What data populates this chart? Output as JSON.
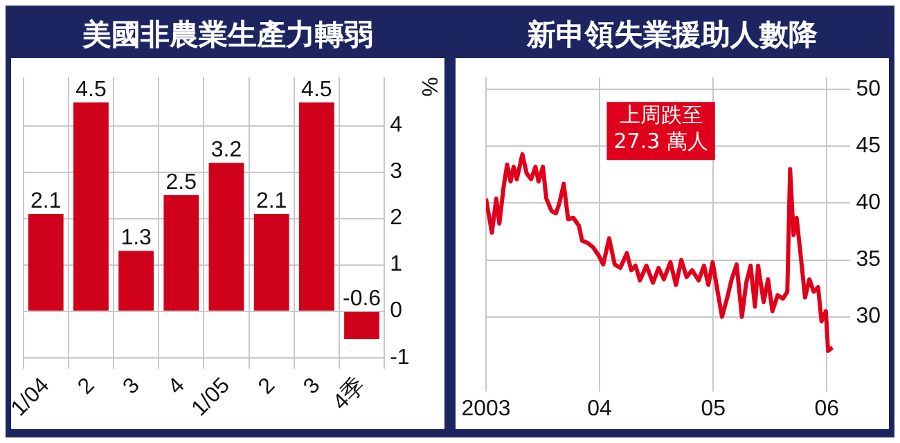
{
  "chart_data": [
    {
      "type": "bar",
      "title": "美國非農業生產力轉弱",
      "ylabel": "%",
      "categories": [
        "1/04",
        "2",
        "3",
        "4",
        "1/05",
        "2",
        "3",
        "4季"
      ],
      "values": [
        2.1,
        4.5,
        1.3,
        2.5,
        3.2,
        2.1,
        4.5,
        -0.6
      ],
      "color": "#d0021b",
      "ylim": [
        -1,
        5.05
      ],
      "yticks": [
        -1,
        0,
        1,
        2,
        3,
        4
      ],
      "grid": true,
      "data_labels": true,
      "legend": false
    },
    {
      "type": "line",
      "title": "新申領失業援助人數降",
      "annotations": [
        "上周跌至\n27.3 萬人"
      ],
      "color": "#e0001b",
      "x": [
        "2003-01-01",
        "2003-01-20",
        "2003-02-03",
        "2003-02-13",
        "2003-02-27",
        "2003-03-10",
        "2003-03-21",
        "2003-03-31",
        "2003-04-10",
        "2003-04-28",
        "2003-05-12",
        "2003-05-26",
        "2003-06-09",
        "2003-06-19",
        "2003-07-03",
        "2003-07-14",
        "2003-07-31",
        "2003-08-14",
        "2003-08-25",
        "2003-09-08",
        "2003-09-22",
        "2003-10-09",
        "2003-10-27",
        "2003-11-06",
        "2003-11-24",
        "2003-12-12",
        "2003-12-29",
        "2004-01-13",
        "2004-02-01",
        "2004-02-19",
        "2004-03-08",
        "2004-03-29",
        "2004-04-12",
        "2004-04-26",
        "2004-05-10",
        "2004-05-31",
        "2004-06-21",
        "2004-07-09",
        "2004-07-26",
        "2004-08-16",
        "2004-09-03",
        "2004-09-20",
        "2004-10-07",
        "2004-10-25",
        "2004-11-15",
        "2004-12-02",
        "2004-12-16",
        "2004-12-30",
        "2005-01-15",
        "2005-01-29",
        "2005-02-15",
        "2005-03-01",
        "2005-03-17",
        "2005-04-03",
        "2005-04-17",
        "2005-05-01",
        "2005-05-15",
        "2005-05-25",
        "2005-06-12",
        "2005-06-26",
        "2005-07-10",
        "2005-07-27",
        "2005-08-13",
        "2005-08-27",
        "2005-09-05",
        "2005-09-16",
        "2005-09-26",
        "2005-10-09",
        "2005-10-23",
        "2005-11-06",
        "2005-11-20",
        "2005-12-04",
        "2005-12-15",
        "2005-12-29",
        "2006-01-05",
        "2006-01-19"
      ],
      "values": [
        40.4,
        37.4,
        40.4,
        38.2,
        41.5,
        43.4,
        41.9,
        43.2,
        42.1,
        44.3,
        42.6,
        42.1,
        43.2,
        41.9,
        43.2,
        40.4,
        39.3,
        39.1,
        40.0,
        41.7,
        38.6,
        38.7,
        38.0,
        36.7,
        36.5,
        36.1,
        35.4,
        34.6,
        36.9,
        34.6,
        34.3,
        35.6,
        34.1,
        34.5,
        33.2,
        34.5,
        33.0,
        34.3,
        33.3,
        34.8,
        32.8,
        35.0,
        33.5,
        34.1,
        33.2,
        34.5,
        32.8,
        34.8,
        32.2,
        30.0,
        31.7,
        33.3,
        34.6,
        30.0,
        33.0,
        34.5,
        30.9,
        34.5,
        31.3,
        33.3,
        30.5,
        31.9,
        31.6,
        32.2,
        43.0,
        37.2,
        38.7,
        35.4,
        31.7,
        33.3,
        32.2,
        32.6,
        29.6,
        30.5,
        27.0,
        27.3
      ],
      "xlim": [
        "2003-01-01",
        "2006-03-18"
      ],
      "xticks": [
        {
          "value": "2003",
          "label": "2003"
        },
        {
          "value": "2004",
          "label": "04"
        },
        {
          "value": "2005",
          "label": "05"
        },
        {
          "value": "2006",
          "label": "06"
        }
      ],
      "ylim": [
        24.4,
        51.1
      ],
      "yticks": [
        30,
        35,
        40,
        45,
        50
      ],
      "grid": true,
      "legend": false
    }
  ]
}
